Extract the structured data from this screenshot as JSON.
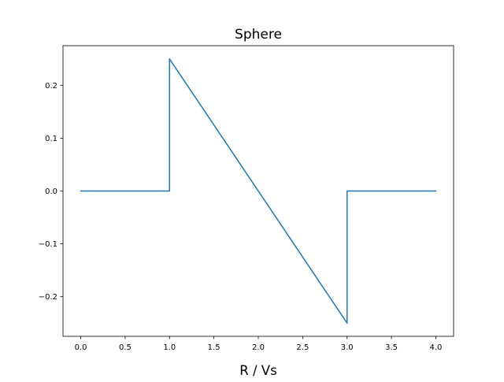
{
  "chart_data": {
    "type": "line",
    "title": "Sphere",
    "xlabel": "R / Vs",
    "ylabel": "",
    "xlim": [
      -0.2,
      4.2
    ],
    "ylim": [
      -0.275,
      0.275
    ],
    "grid": false,
    "x_ticks": [
      0.0,
      0.5,
      1.0,
      1.5,
      2.0,
      2.5,
      3.0,
      3.5,
      4.0
    ],
    "x_tick_labels": [
      "0.0",
      "0.5",
      "1.0",
      "1.5",
      "2.0",
      "2.5",
      "3.0",
      "3.5",
      "4.0"
    ],
    "y_ticks": [
      -0.2,
      -0.1,
      0.0,
      0.1,
      0.2
    ],
    "y_tick_labels": [
      "−0.2",
      "−0.1",
      "0.0",
      "0.1",
      "0.2"
    ],
    "series": [
      {
        "color": "#1f77b4",
        "x": [
          0.0,
          1.0,
          1.0,
          3.0,
          3.0,
          4.0
        ],
        "y": [
          0.0,
          0.0,
          0.25,
          -0.25,
          0.0,
          0.0
        ]
      }
    ]
  }
}
